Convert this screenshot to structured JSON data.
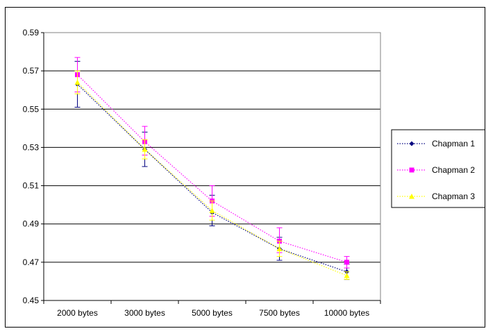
{
  "chart_data": {
    "type": "line",
    "title": "",
    "xlabel": "",
    "ylabel": "",
    "categories": [
      "2000 bytes",
      "3000 bytes",
      "5000 bytes",
      "7500 bytes",
      "10000 bytes"
    ],
    "ylim": [
      0.45,
      0.59
    ],
    "yticks": [
      "0.45",
      "0.47",
      "0.49",
      "0.51",
      "0.53",
      "0.55",
      "0.57",
      "0.59"
    ],
    "grid": true,
    "legend_position": "right",
    "series": [
      {
        "name": "Chapman 1",
        "color": "#000080",
        "marker": "diamond",
        "values": [
          0.563,
          0.529,
          0.496,
          0.477,
          0.465
        ],
        "err_low": [
          0.551,
          0.52,
          0.489,
          0.471,
          0.461
        ],
        "err_high": [
          0.575,
          0.538,
          0.505,
          0.483,
          0.469
        ]
      },
      {
        "name": "Chapman 2",
        "color": "#ff00ff",
        "marker": "square",
        "values": [
          0.568,
          0.533,
          0.502,
          0.481,
          0.47
        ],
        "err_low": [
          0.559,
          0.526,
          0.494,
          0.475,
          0.467
        ],
        "err_high": [
          0.577,
          0.541,
          0.51,
          0.488,
          0.473
        ]
      },
      {
        "name": "Chapman 3",
        "color": "#ffff00",
        "marker": "triangle",
        "values": [
          0.564,
          0.529,
          0.497,
          0.477,
          0.463
        ],
        "err_low": [
          0.558,
          0.524,
          0.492,
          0.473,
          0.461
        ],
        "err_high": [
          0.57,
          0.534,
          0.502,
          0.481,
          0.465
        ]
      }
    ]
  }
}
